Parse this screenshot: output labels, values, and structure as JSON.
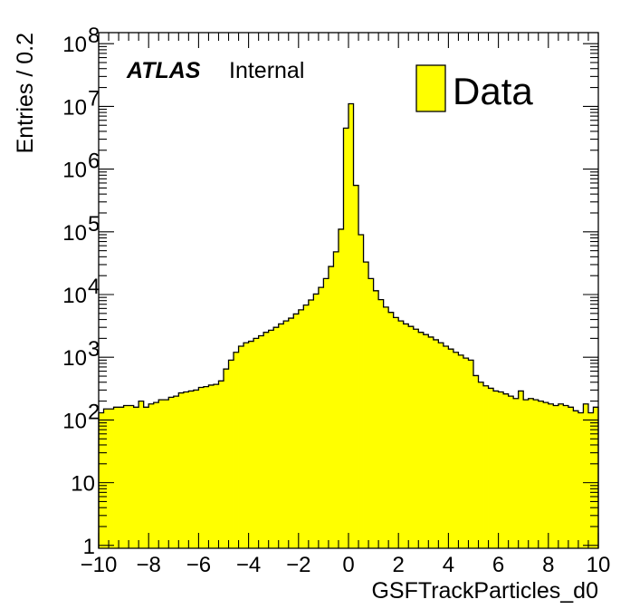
{
  "chart_data": {
    "type": "bar",
    "subtype": "histogram-step-filled",
    "xlabel": "GSFTrackParticles_d0",
    "ylabel": "Entries / 0.2",
    "label_bold": "ATLAS",
    "label_normal": "Internal",
    "legend": [
      "Data"
    ],
    "legend_position": "top-right",
    "fill_color": "#ffff00",
    "line_color": "#000000",
    "xlim": [
      -10,
      10
    ],
    "ylim": [
      0.9,
      150000000
    ],
    "yscale": "log",
    "bin_width": 0.2,
    "x_ticks": [
      "−10",
      "−8",
      "−6",
      "−4",
      "−2",
      "0",
      "2",
      "4",
      "6",
      "8",
      "10"
    ],
    "y_ticks": [
      {
        "base": "1",
        "exp": ""
      },
      {
        "base": "10",
        "exp": ""
      },
      {
        "base": "10",
        "exp": "2"
      },
      {
        "base": "10",
        "exp": "3"
      },
      {
        "base": "10",
        "exp": "4"
      },
      {
        "base": "10",
        "exp": "5"
      },
      {
        "base": "10",
        "exp": "6"
      },
      {
        "base": "10",
        "exp": "7"
      },
      {
        "base": "10",
        "exp": "8"
      }
    ],
    "bin_low_edges": [
      -10.0,
      -9.8,
      -9.6,
      -9.4,
      -9.2,
      -9.0,
      -8.8,
      -8.6,
      -8.4,
      -8.2,
      -8.0,
      -7.8,
      -7.6,
      -7.4,
      -7.2,
      -7.0,
      -6.8,
      -6.6,
      -6.4,
      -6.2,
      -6.0,
      -5.8,
      -5.6,
      -5.4,
      -5.2,
      -5.0,
      -4.8,
      -4.6,
      -4.4,
      -4.2,
      -4.0,
      -3.8,
      -3.6,
      -3.4,
      -3.2,
      -3.0,
      -2.8,
      -2.6,
      -2.4,
      -2.2,
      -2.0,
      -1.8,
      -1.6,
      -1.4,
      -1.2,
      -1.0,
      -0.8,
      -0.6,
      -0.4,
      -0.2,
      0.0,
      0.2,
      0.4,
      0.6,
      0.8,
      1.0,
      1.2,
      1.4,
      1.6,
      1.8,
      2.0,
      2.2,
      2.4,
      2.6,
      2.8,
      3.0,
      3.2,
      3.4,
      3.6,
      3.8,
      4.0,
      4.2,
      4.4,
      4.6,
      4.8,
      5.0,
      5.2,
      5.4,
      5.6,
      5.8,
      6.0,
      6.2,
      6.4,
      6.6,
      6.8,
      7.0,
      7.2,
      7.4,
      7.6,
      7.8,
      8.0,
      8.2,
      8.4,
      8.6,
      8.8,
      9.0,
      9.2,
      9.4,
      9.6,
      9.8
    ],
    "values": [
      130,
      150,
      150,
      160,
      160,
      170,
      170,
      160,
      200,
      160,
      180,
      190,
      210,
      210,
      230,
      240,
      270,
      280,
      290,
      300,
      330,
      340,
      360,
      370,
      420,
      650,
      900,
      1200,
      1500,
      1700,
      1800,
      2000,
      2200,
      2500,
      2700,
      3000,
      3400,
      3800,
      4200,
      4900,
      5700,
      6800,
      8200,
      10200,
      13000,
      18000,
      28000,
      48000,
      110000,
      4500000,
      11000000,
      550000,
      90000,
      33000,
      18000,
      11500,
      8300,
      6300,
      5200,
      4300,
      3800,
      3400,
      3100,
      2800,
      2500,
      2300,
      2100,
      1900,
      1700,
      1500,
      1350,
      1200,
      1080,
      970,
      900,
      510,
      400,
      350,
      320,
      290,
      280,
      260,
      240,
      220,
      290,
      210,
      220,
      210,
      200,
      190,
      180,
      170,
      180,
      170,
      160,
      140,
      130,
      180,
      130,
      160
    ]
  }
}
